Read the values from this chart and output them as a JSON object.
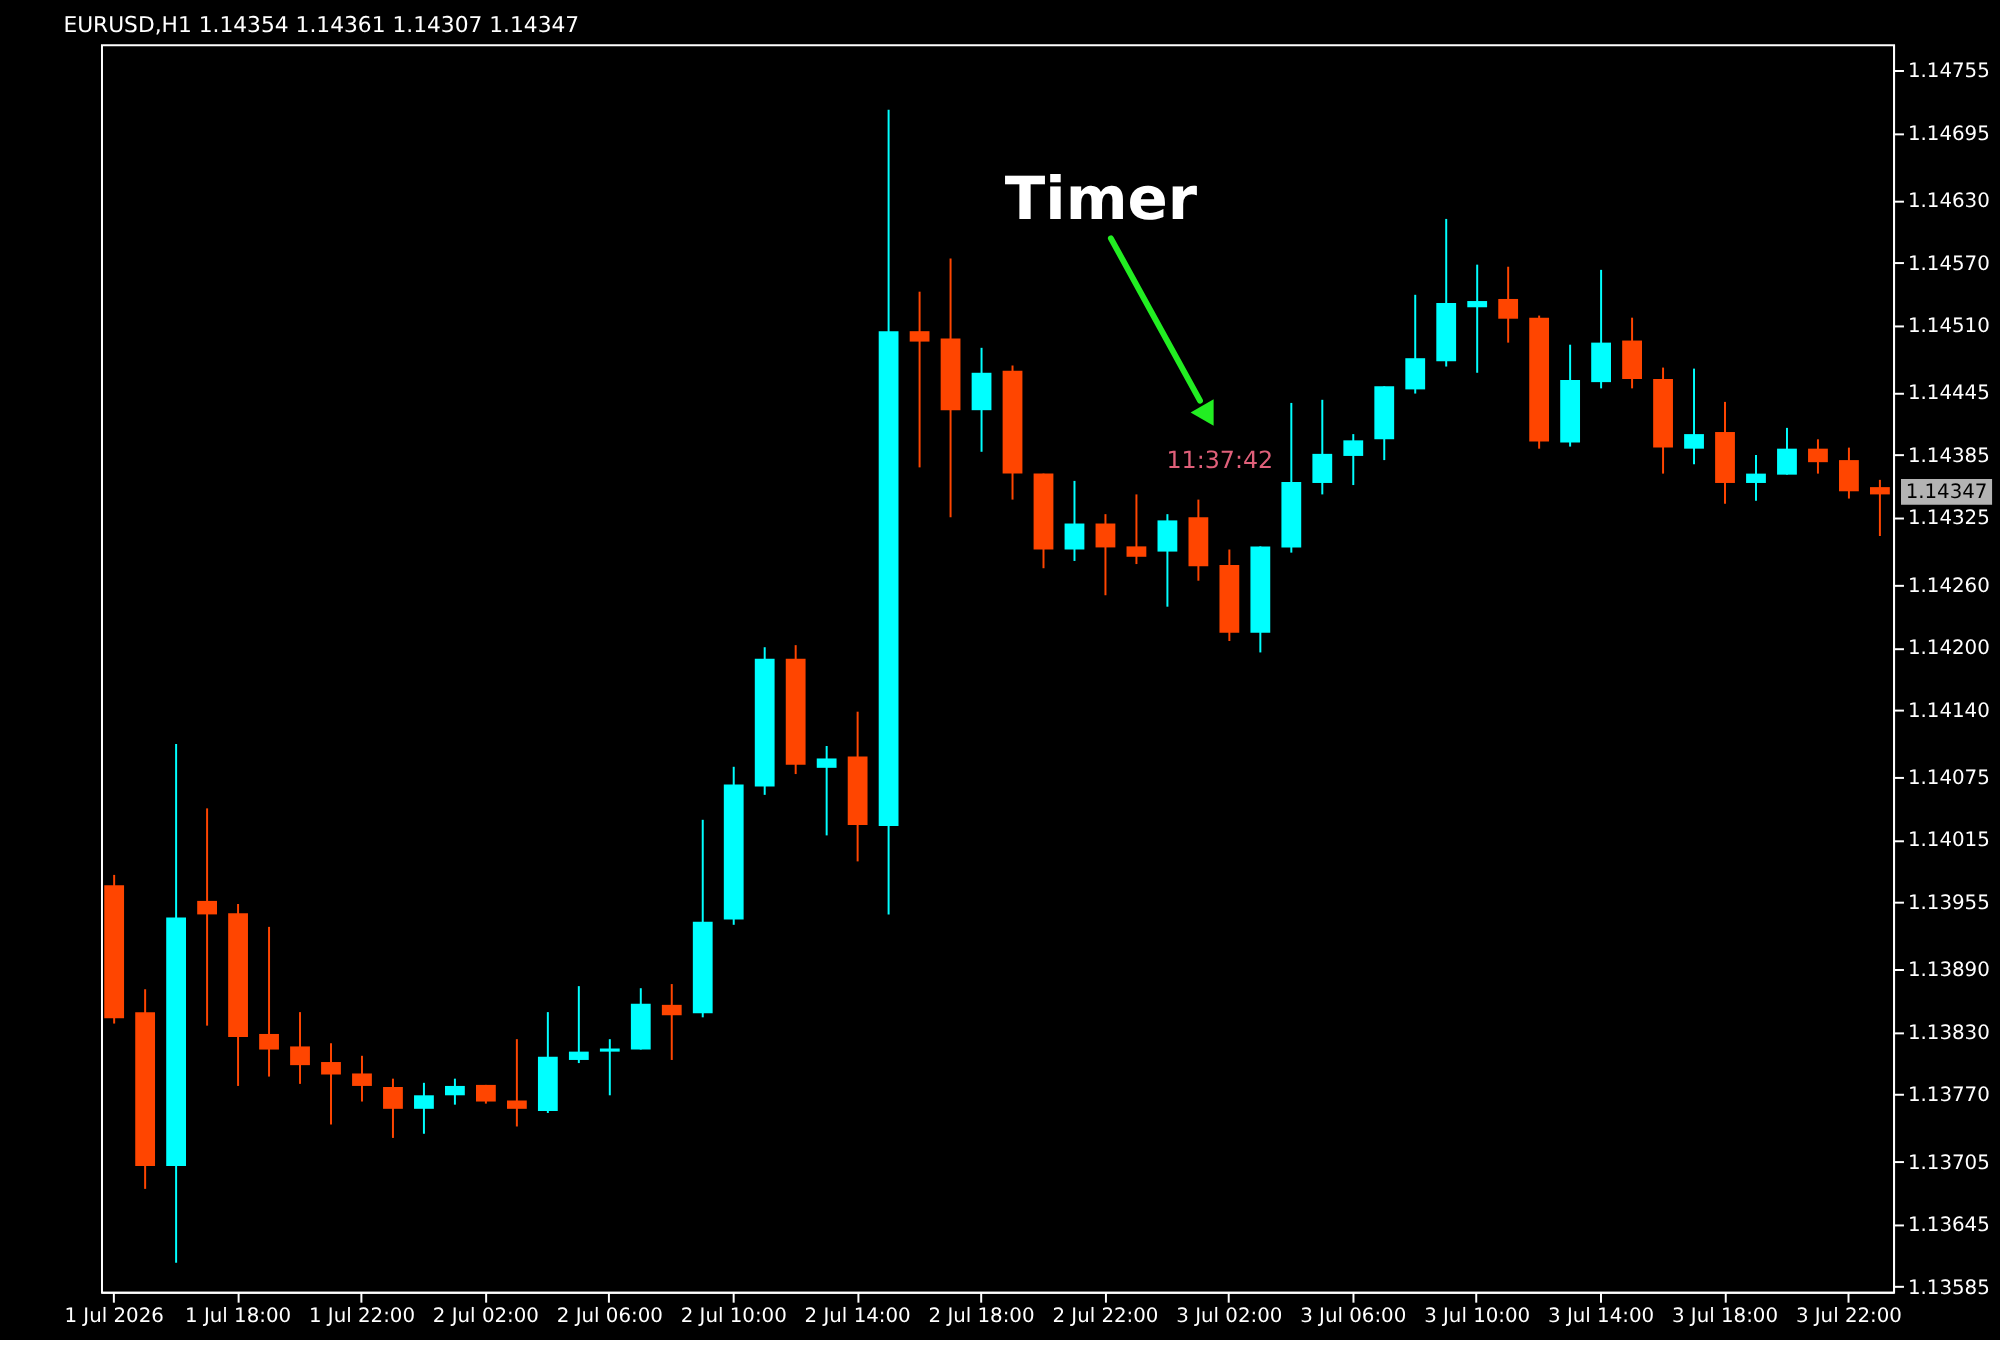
{
  "chart_data": {
    "type": "candlestick",
    "title": "EURUSD,H1  1.14354 1.14361 1.14307 1.14347",
    "categories": [
      "1 Jul 2026",
      null,
      null,
      null,
      "1 Jul 18:00",
      null,
      null,
      null,
      "1 Jul 22:00",
      null,
      null,
      null,
      "2 Jul 02:00",
      null,
      null,
      null,
      "2 Jul 06:00",
      null,
      null,
      null,
      "2 Jul 10:00",
      null,
      null,
      null,
      "2 Jul 14:00",
      null,
      null,
      null,
      "2 Jul 18:00",
      null,
      null,
      null,
      "2 Jul 22:00",
      null,
      null,
      null,
      "3 Jul 02:00",
      null,
      null,
      null,
      "3 Jul 06:00",
      null,
      null,
      null,
      "3 Jul 10:00",
      null,
      null,
      null,
      "3 Jul 14:00",
      null,
      null,
      null,
      "3 Jul 18:00",
      null,
      null,
      null,
      "3 Jul 22:00",
      null
    ],
    "ohlc": [
      [
        1.13971,
        1.13981,
        1.13838,
        1.13843
      ],
      [
        1.13849,
        1.13871,
        1.13679,
        1.13701
      ],
      [
        1.13701,
        1.14107,
        1.13608,
        1.1394
      ],
      [
        1.13956,
        1.14045,
        1.13836,
        1.13943
      ],
      [
        1.13944,
        1.13953,
        1.13778,
        1.13825
      ],
      [
        1.13828,
        1.13931,
        1.13787,
        1.13813
      ],
      [
        1.13816,
        1.13849,
        1.1378,
        1.13798
      ],
      [
        1.13801,
        1.13819,
        1.13741,
        1.13789
      ],
      [
        1.1379,
        1.13807,
        1.13763,
        1.13778
      ],
      [
        1.13777,
        1.13785,
        1.13728,
        1.13756
      ],
      [
        1.13756,
        1.13781,
        1.13732,
        1.13769
      ],
      [
        1.13769,
        1.13785,
        1.1376,
        1.13778
      ],
      [
        1.13779,
        1.13779,
        1.13761,
        1.13763
      ],
      [
        1.13764,
        1.13823,
        1.13739,
        1.13756
      ],
      [
        1.13754,
        1.13849,
        1.13752,
        1.13806
      ],
      [
        1.13803,
        1.13874,
        1.138,
        1.13811
      ],
      [
        1.13811,
        1.13823,
        1.13769,
        1.13814
      ],
      [
        1.13813,
        1.13872,
        1.13813,
        1.13857
      ],
      [
        1.13856,
        1.13876,
        1.13803,
        1.13846
      ],
      [
        1.13848,
        1.14034,
        1.13844,
        1.13936
      ],
      [
        1.13938,
        1.14085,
        1.13933,
        1.14068
      ],
      [
        1.14066,
        1.142,
        1.14058,
        1.14189
      ],
      [
        1.14189,
        1.14202,
        1.14078,
        1.14087
      ],
      [
        1.14084,
        1.14105,
        1.14019,
        1.14093
      ],
      [
        1.14095,
        1.14138,
        1.13994,
        1.14029
      ],
      [
        1.14028,
        1.14717,
        1.13943,
        1.14504
      ],
      [
        1.14504,
        1.14542,
        1.14373,
        1.14494
      ],
      [
        1.14497,
        1.14574,
        1.14325,
        1.14428
      ],
      [
        1.14428,
        1.14488,
        1.14388,
        1.14464
      ],
      [
        1.14466,
        1.14471,
        1.14342,
        1.14367
      ],
      [
        1.14367,
        1.14367,
        1.14276,
        1.14294
      ],
      [
        1.14294,
        1.1436,
        1.14283,
        1.14319
      ],
      [
        1.14319,
        1.14328,
        1.1425,
        1.14296
      ],
      [
        1.14297,
        1.14347,
        1.1428,
        1.14287
      ],
      [
        1.14292,
        1.14328,
        1.14239,
        1.14322
      ],
      [
        1.14325,
        1.14342,
        1.14264,
        1.14278
      ],
      [
        1.14279,
        1.14294,
        1.14206,
        1.14214
      ],
      [
        1.14214,
        1.14297,
        1.14195,
        1.14297
      ],
      [
        1.14296,
        1.14435,
        1.14291,
        1.14359
      ],
      [
        1.14358,
        1.14438,
        1.14347,
        1.14386
      ],
      [
        1.14384,
        1.14405,
        1.14356,
        1.14399
      ],
      [
        1.144,
        1.14451,
        1.1438,
        1.14451
      ],
      [
        1.14448,
        1.14539,
        1.14444,
        1.14478
      ],
      [
        1.14475,
        1.14612,
        1.1447,
        1.14531
      ],
      [
        1.14527,
        1.14568,
        1.14464,
        1.14533
      ],
      [
        1.14535,
        1.14566,
        1.14493,
        1.14516
      ],
      [
        1.14517,
        1.14519,
        1.14391,
        1.14398
      ],
      [
        1.14397,
        1.14491,
        1.14393,
        1.14457
      ],
      [
        1.14455,
        1.14563,
        1.14449,
        1.14493
      ],
      [
        1.14495,
        1.14517,
        1.14449,
        1.14458
      ],
      [
        1.14458,
        1.14469,
        1.14367,
        1.14392
      ],
      [
        1.14391,
        1.14468,
        1.14376,
        1.14405
      ],
      [
        1.14407,
        1.14436,
        1.14338,
        1.14358
      ],
      [
        1.14358,
        1.14385,
        1.14341,
        1.14367
      ],
      [
        1.14366,
        1.14411,
        1.14366,
        1.14391
      ],
      [
        1.14391,
        1.144,
        1.14367,
        1.14378
      ],
      [
        1.1438,
        1.14392,
        1.14343,
        1.1435
      ],
      [
        1.14354,
        1.14361,
        1.14307,
        1.14347
      ]
    ],
    "colors": [
      "#ff4500",
      "#ff4500",
      "#00ffff",
      "#ff4500",
      "#ff4500",
      "#ff4500",
      "#ff4500",
      "#ff4500",
      "#ff4500",
      "#ff4500",
      "#00ffff",
      "#00ffff",
      "#ff4500",
      "#ff4500",
      "#00ffff",
      "#00ffff",
      "#00ffff",
      "#00ffff",
      "#ff4500",
      "#00ffff",
      "#00ffff",
      "#00ffff",
      "#ff4500",
      "#00ffff",
      "#ff4500",
      "#00ffff",
      "#ff4500",
      "#ff4500",
      "#00ffff",
      "#ff4500",
      "#ff4500",
      "#00ffff",
      "#ff4500",
      "#ff4500",
      "#00ffff",
      "#ff4500",
      "#ff4500",
      "#00ffff",
      "#00ffff",
      "#00ffff",
      "#00ffff",
      "#00ffff",
      "#00ffff",
      "#00ffff",
      "#00ffff",
      "#ff4500",
      "#ff4500",
      "#00ffff",
      "#00ffff",
      "#ff4500",
      "#ff4500",
      "#00ffff",
      "#ff4500",
      "#00ffff",
      "#00ffff",
      "#ff4500",
      "#ff4500",
      "#ff4500"
    ],
    "ylim": [
      1.1358,
      1.1478
    ],
    "yticks": [
      1.13585,
      1.13645,
      1.13705,
      {
        "value": 1.1377,
        "label": "1.13770"
      },
      {
        "value": 1.1383,
        "label": "1.13830"
      },
      {
        "value": 1.1389,
        "label": "1.13890"
      },
      1.13955,
      1.14015,
      1.14075,
      {
        "value": 1.1414,
        "label": "1.14140"
      },
      {
        "value": 1.142,
        "label": "1.14200"
      },
      {
        "value": 1.1426,
        "label": "1.14260"
      },
      1.14325,
      1.14385,
      1.14445,
      {
        "value": 1.1451,
        "label": "1.14510"
      },
      {
        "value": 1.1457,
        "label": "1.14570"
      },
      {
        "value": 1.1463,
        "label": "1.14630"
      },
      1.14695,
      1.14755
    ],
    "grid": false,
    "annotations": [
      "Timer",
      "11:37:42",
      "1.14347"
    ]
  }
}
